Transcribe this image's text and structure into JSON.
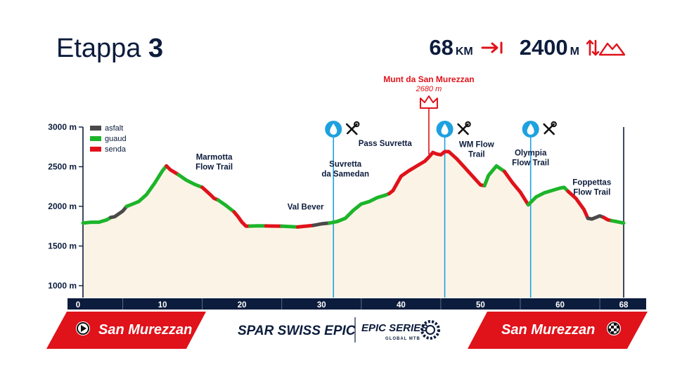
{
  "header": {
    "title_word": "Etappa",
    "title_number": "3",
    "distance_value": "68",
    "distance_unit": "KM",
    "elevation_value": "2400",
    "elevation_unit": "M",
    "distance_icon": "distance-arrow-icon",
    "elevation_icon": "elevation-mountain-icon"
  },
  "chart_data": {
    "type": "area",
    "x_unit": "km",
    "y_unit": "m",
    "xlim": [
      0,
      68
    ],
    "ylim": [
      850,
      3000
    ],
    "y_ticks": [
      {
        "value": 3000,
        "label": "3000 m"
      },
      {
        "value": 2500,
        "label": "2500 m"
      },
      {
        "value": 2000,
        "label": "2000 m"
      },
      {
        "value": 1500,
        "label": "1500 m"
      },
      {
        "value": 1000,
        "label": "1000 m"
      }
    ],
    "x_ticks": [
      {
        "value": 0,
        "label": "0"
      },
      {
        "value": 10,
        "label": "10"
      },
      {
        "value": 20,
        "label": "20"
      },
      {
        "value": 30,
        "label": "30"
      },
      {
        "value": 40,
        "label": "40"
      },
      {
        "value": 50,
        "label": "50"
      },
      {
        "value": 60,
        "label": "60"
      },
      {
        "value": 68,
        "label": "68"
      }
    ],
    "x_minor_ticks": [
      5,
      15,
      25,
      35,
      45,
      55,
      65
    ],
    "legend": [
      {
        "key": "asfalt",
        "label": "asfalt",
        "color": "#4a4a4a"
      },
      {
        "key": "guaud",
        "label": "guaud",
        "color": "#1cb52a"
      },
      {
        "key": "senda",
        "label": "senda",
        "color": "#e0121a"
      }
    ],
    "profile": [
      [
        0,
        1790
      ],
      [
        1,
        1800
      ],
      [
        2,
        1800
      ],
      [
        3,
        1830
      ],
      [
        3.5,
        1860
      ],
      [
        4,
        1870
      ],
      [
        5,
        1940
      ],
      [
        5.5,
        2000
      ],
      [
        6,
        2020
      ],
      [
        7,
        2060
      ],
      [
        8,
        2150
      ],
      [
        9,
        2290
      ],
      [
        10,
        2450
      ],
      [
        10.5,
        2510
      ],
      [
        11,
        2460
      ],
      [
        12,
        2400
      ],
      [
        13,
        2330
      ],
      [
        14,
        2280
      ],
      [
        15,
        2240
      ],
      [
        16,
        2150
      ],
      [
        16.5,
        2100
      ],
      [
        17,
        2080
      ],
      [
        18,
        2010
      ],
      [
        19,
        1930
      ],
      [
        19.5,
        1870
      ],
      [
        20,
        1800
      ],
      [
        20.5,
        1750
      ],
      [
        22,
        1755
      ],
      [
        25,
        1750
      ],
      [
        27,
        1740
      ],
      [
        29,
        1760
      ],
      [
        30,
        1780
      ],
      [
        31,
        1790
      ],
      [
        32,
        1810
      ],
      [
        33,
        1850
      ],
      [
        34,
        1950
      ],
      [
        35,
        2030
      ],
      [
        36,
        2060
      ],
      [
        37,
        2110
      ],
      [
        38,
        2140
      ],
      [
        38.5,
        2160
      ],
      [
        39,
        2200
      ],
      [
        40,
        2380
      ],
      [
        41,
        2450
      ],
      [
        42,
        2510
      ],
      [
        43,
        2570
      ],
      [
        43.5,
        2620
      ],
      [
        44,
        2680
      ],
      [
        44.5,
        2660
      ],
      [
        45,
        2650
      ],
      [
        45.5,
        2690
      ],
      [
        46,
        2690
      ],
      [
        47,
        2600
      ],
      [
        48,
        2490
      ],
      [
        49,
        2380
      ],
      [
        50,
        2270
      ],
      [
        50.5,
        2260
      ],
      [
        51,
        2390
      ],
      [
        52,
        2510
      ],
      [
        53,
        2440
      ],
      [
        54,
        2300
      ],
      [
        55,
        2180
      ],
      [
        56,
        2020
      ],
      [
        57,
        2120
      ],
      [
        58,
        2170
      ],
      [
        59,
        2200
      ],
      [
        60,
        2230
      ],
      [
        60.5,
        2240
      ],
      [
        61,
        2190
      ],
      [
        62,
        2100
      ],
      [
        63,
        1960
      ],
      [
        63.5,
        1850
      ],
      [
        64,
        1840
      ],
      [
        65,
        1880
      ],
      [
        65.5,
        1860
      ],
      [
        66,
        1830
      ],
      [
        67,
        1810
      ],
      [
        68,
        1790
      ]
    ],
    "segments": [
      {
        "from": 0,
        "to": 3.5,
        "type": "guaud"
      },
      {
        "from": 3.5,
        "to": 5.5,
        "type": "asfalt"
      },
      {
        "from": 5.5,
        "to": 10.5,
        "type": "guaud"
      },
      {
        "from": 10.5,
        "to": 12,
        "type": "senda"
      },
      {
        "from": 12,
        "to": 15,
        "type": "guaud"
      },
      {
        "from": 15,
        "to": 17,
        "type": "senda"
      },
      {
        "from": 17,
        "to": 19,
        "type": "guaud"
      },
      {
        "from": 19,
        "to": 21,
        "type": "senda"
      },
      {
        "from": 21,
        "to": 23,
        "type": "guaud"
      },
      {
        "from": 23,
        "to": 25,
        "type": "senda"
      },
      {
        "from": 25,
        "to": 27,
        "type": "guaud"
      },
      {
        "from": 27,
        "to": 29,
        "type": "senda"
      },
      {
        "from": 29,
        "to": 31,
        "type": "asfalt"
      },
      {
        "from": 31,
        "to": 38.5,
        "type": "guaud"
      },
      {
        "from": 38.5,
        "to": 47,
        "type": "senda"
      },
      {
        "from": 47,
        "to": 50.5,
        "type": "senda"
      },
      {
        "from": 50.5,
        "to": 53,
        "type": "guaud"
      },
      {
        "from": 53,
        "to": 56,
        "type": "senda"
      },
      {
        "from": 56,
        "to": 61,
        "type": "guaud"
      },
      {
        "from": 61,
        "to": 63.5,
        "type": "senda"
      },
      {
        "from": 63.5,
        "to": 65.5,
        "type": "asfalt"
      },
      {
        "from": 65.5,
        "to": 66.5,
        "type": "senda"
      },
      {
        "from": 66.5,
        "to": 68,
        "type": "guaud"
      }
    ],
    "labels": [
      {
        "text": [
          "Marmotta",
          "Flow Trail"
        ],
        "x": 16.5,
        "y": 2590
      },
      {
        "text": [
          "Val Bever"
        ],
        "x": 28,
        "y": 1960
      },
      {
        "text": [
          "Suvretta",
          "da Samedan"
        ],
        "x": 33,
        "y": 2500
      },
      {
        "text": [
          "Pass Suvretta"
        ],
        "x": 38,
        "y": 2760
      },
      {
        "text": [
          "WM Flow",
          "Trail"
        ],
        "x": 49.5,
        "y": 2750
      },
      {
        "text": [
          "Olympia",
          "Flow Trail"
        ],
        "x": 56.3,
        "y": 2640
      },
      {
        "text": [
          "Foppettas",
          "Flow Trail"
        ],
        "x": 64,
        "y": 2270
      }
    ],
    "summit": {
      "name": "Munt da San Murezzan",
      "elevation": "2680 m",
      "x": 43.5
    },
    "service_points": [
      31.5,
      45.5,
      56.3
    ],
    "service_icons": [
      "water-drop-icon",
      "tools-icon"
    ],
    "fill_color": "#fbf4e6"
  },
  "footer": {
    "start": "San Murezzan",
    "finish": "San Murezzan",
    "brand": "SPAR SWISS EPIC",
    "series": "EPIC SERIES",
    "series_sub": "GLOBAL MTB",
    "accent": "#e0121a",
    "start_icon": "play-icon",
    "finish_icon": "finish-flag-icon"
  }
}
